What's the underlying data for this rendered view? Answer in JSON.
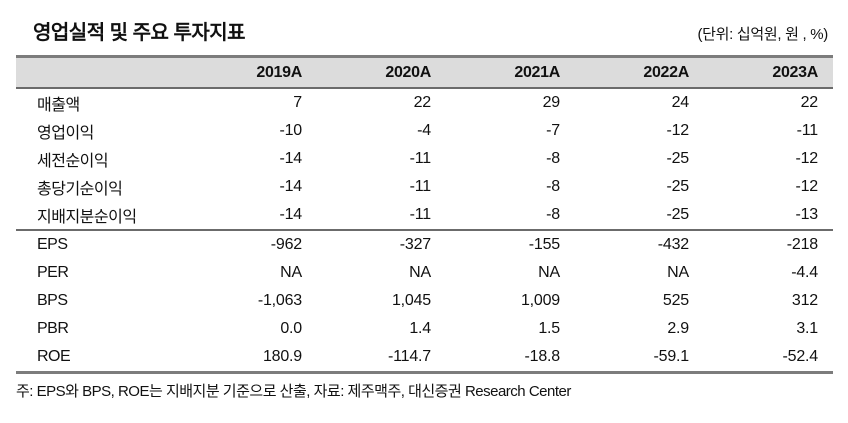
{
  "header": {
    "title": "영업실적 및 주요 투자지표",
    "unit_label": "(단위: 십억원, 원 , %)"
  },
  "table": {
    "columns": [
      "2019A",
      "2020A",
      "2021A",
      "2022A",
      "2023A"
    ],
    "rows": [
      {
        "label": "매출액",
        "values": [
          "7",
          "22",
          "29",
          "24",
          "22"
        ]
      },
      {
        "label": "영업이익",
        "values": [
          "-10",
          "-4",
          "-7",
          "-12",
          "-11"
        ]
      },
      {
        "label": "세전순이익",
        "values": [
          "-14",
          "-11",
          "-8",
          "-25",
          "-12"
        ]
      },
      {
        "label": "총당기순이익",
        "values": [
          "-14",
          "-11",
          "-8",
          "-25",
          "-12"
        ]
      },
      {
        "label": "지배지분순이익",
        "values": [
          "-14",
          "-11",
          "-8",
          "-25",
          "-13"
        ]
      },
      {
        "label": "EPS",
        "values": [
          "-962",
          "-327",
          "-155",
          "-432",
          "-218"
        ]
      },
      {
        "label": "PER",
        "values": [
          "NA",
          "NA",
          "NA",
          "NA",
          "-4.4"
        ]
      },
      {
        "label": "BPS",
        "values": [
          "-1,063",
          "1,045",
          "1,009",
          "525",
          "312"
        ]
      },
      {
        "label": "PBR",
        "values": [
          "0.0",
          "1.4",
          "1.5",
          "2.9",
          "3.1"
        ]
      },
      {
        "label": "ROE",
        "values": [
          "180.9",
          "-114.7",
          "-18.8",
          "-59.1",
          "-52.4"
        ]
      }
    ]
  },
  "footer": {
    "note": "주: EPS와 BPS, ROE는 지배지분 기준으로 산출, 자료: 제주맥주, 대신증권 Research Center"
  },
  "colors": {
    "header_row_bg": "#dcdcdc",
    "rule_heavy": "#7c7c7c",
    "rule_medium": "#6b6b6b",
    "text": "#111111"
  }
}
